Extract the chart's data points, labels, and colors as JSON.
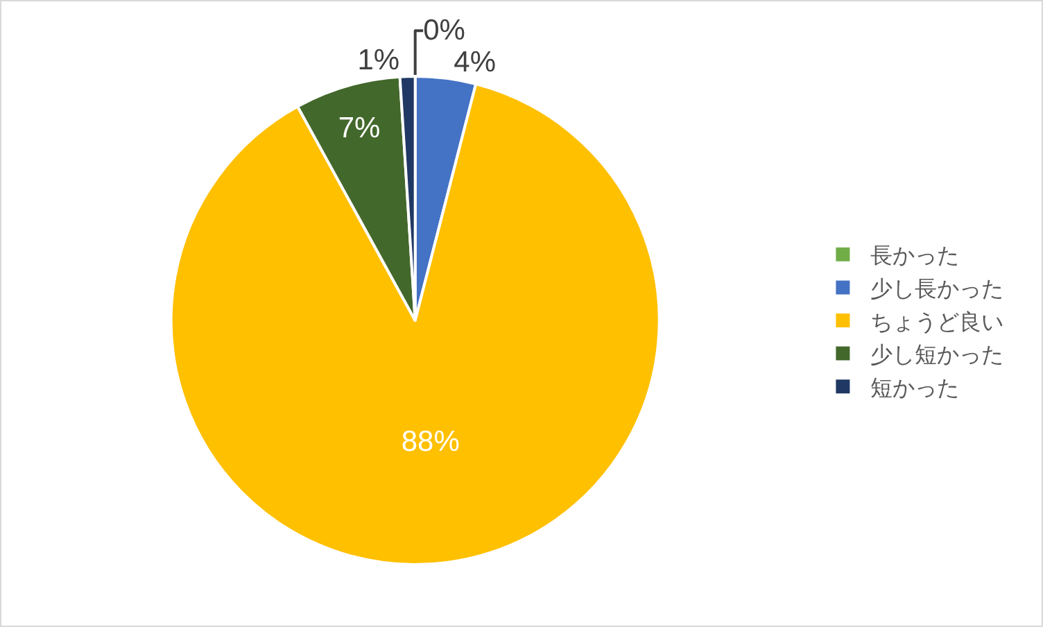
{
  "chart_data": {
    "type": "pie",
    "categories": [
      "長かった",
      "少し長かった",
      "ちょうど良い",
      "少し短かった",
      "短かった"
    ],
    "values": [
      0,
      4,
      88,
      7,
      1
    ],
    "colors": [
      "#70ad47",
      "#4472c4",
      "#ffc000",
      "#43682b",
      "#203864"
    ],
    "value_labels": [
      "0%",
      "4%",
      "88%",
      "7%",
      "1%"
    ],
    "legend": "right"
  }
}
